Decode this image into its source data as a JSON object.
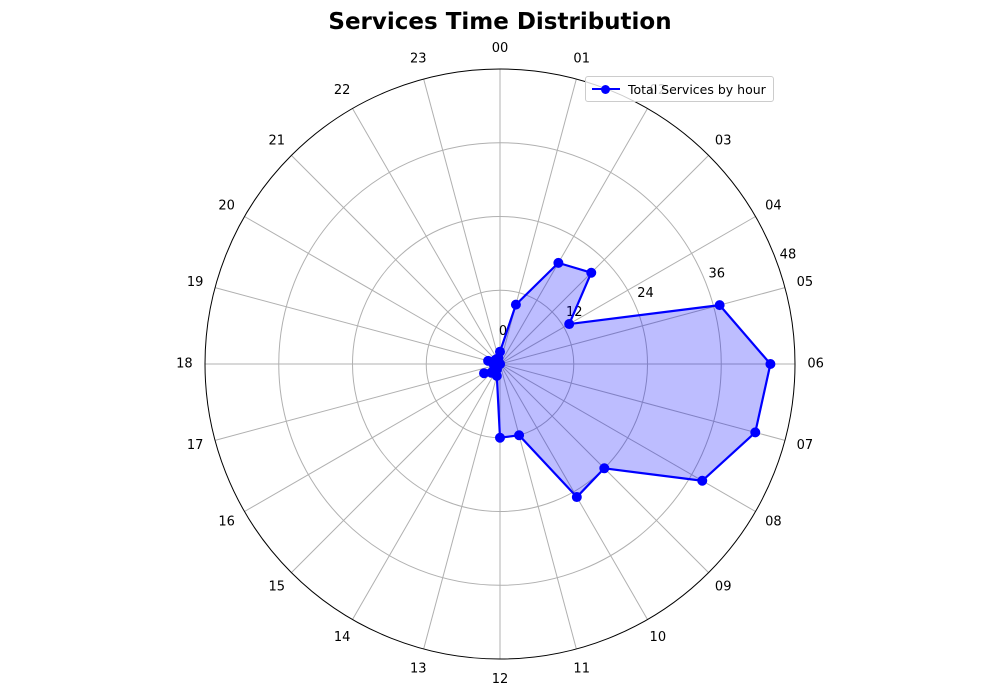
{
  "chart_data": {
    "type": "radar",
    "title": "Services Time Distribution",
    "categories": [
      "00",
      "01",
      "02",
      "03",
      "04",
      "05",
      "06",
      "07",
      "08",
      "09",
      "10",
      "11",
      "12",
      "13",
      "14",
      "15",
      "16",
      "17",
      "18",
      "19",
      "20",
      "21",
      "22",
      "23"
    ],
    "series": [
      {
        "name": "Total Services by hour",
        "values": [
          2,
          10,
          19,
          21,
          13,
          37,
          44,
          43,
          38,
          24,
          25,
          12,
          12,
          2,
          1,
          2,
          3,
          1,
          1,
          2,
          0,
          1,
          0,
          1
        ],
        "color": "#0000ff",
        "fill": "#0000ff",
        "fill_opacity": 0.26
      }
    ],
    "radial_ticks": [
      0,
      12,
      24,
      36,
      48
    ],
    "rlim": [
      0,
      48
    ],
    "grid": true,
    "legend_position": "top-right",
    "direction": "clockwise",
    "zero_location": "top"
  }
}
